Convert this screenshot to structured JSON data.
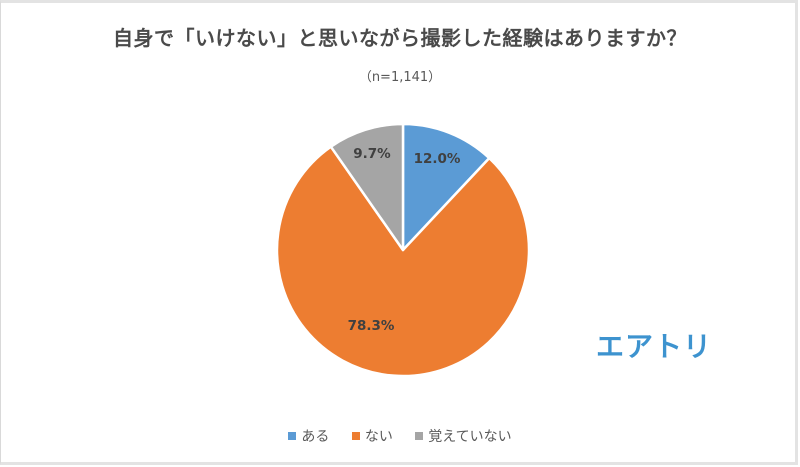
{
  "chart_data": {
    "type": "pie",
    "title": "自身で「いけない」と思いながら撮影した経験はありますか？",
    "subtitle": "（n=1,141）",
    "categories": [
      "ある",
      "ない",
      "覚えていない"
    ],
    "values": [
      12.0,
      78.3,
      9.7
    ],
    "labels": [
      "12.0%",
      "78.3%",
      "9.7%"
    ],
    "colors": [
      "#5b9bd5",
      "#ed7d31",
      "#a5a5a5"
    ],
    "start_angle_deg": 0,
    "direction": "clockwise",
    "legend_position": "bottom"
  },
  "legend": {
    "items": [
      {
        "label": "ある",
        "color": "#5b9bd5"
      },
      {
        "label": "ない",
        "color": "#ed7d31"
      },
      {
        "label": "覚えていない",
        "color": "#a5a5a5"
      }
    ]
  },
  "logo": {
    "text": "エアトリ",
    "color": "#3d93cf"
  }
}
